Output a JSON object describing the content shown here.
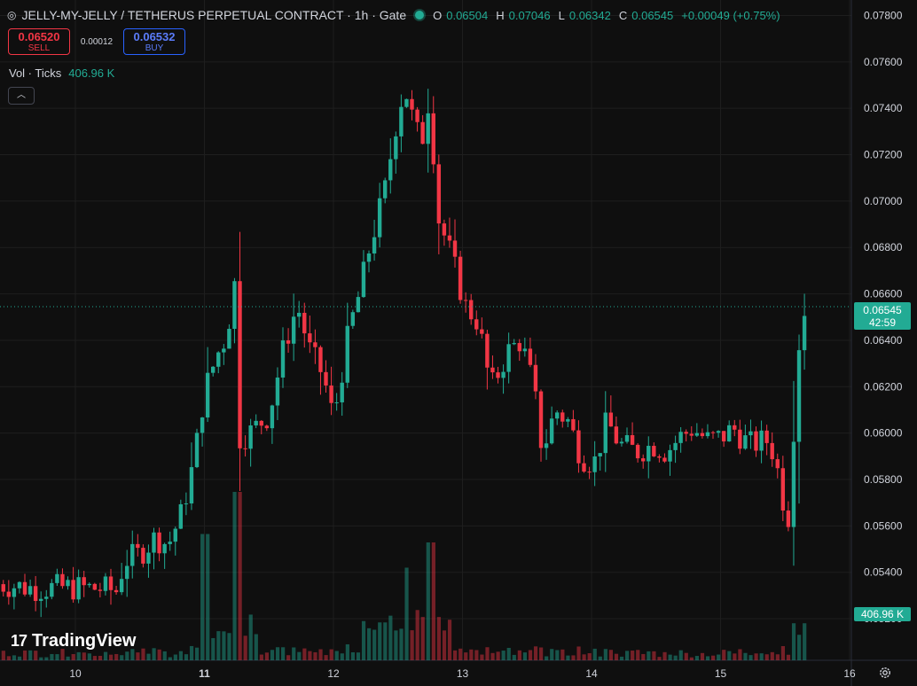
{
  "header": {
    "title": "JELLY-MY-JELLY / TETHERUS PERPETUAL CONTRACT · 1h · Gate",
    "ohlc": [
      {
        "k": "O",
        "v": "0.06504"
      },
      {
        "k": "H",
        "v": "0.07046"
      },
      {
        "k": "L",
        "v": "0.06342"
      },
      {
        "k": "C",
        "v": "0.06545"
      }
    ],
    "change": "+0.00049 (+0.75%)"
  },
  "trade": {
    "sell_price": "0.06520",
    "sell_label": "SELL",
    "spread": "0.00012",
    "buy_price": "0.06532",
    "buy_label": "BUY"
  },
  "volume_legend": {
    "label": "Vol · Ticks",
    "value": "406.96 K"
  },
  "collapse_icon": "chevron-up",
  "logo_text": "TradingView",
  "last_price": {
    "value": "0.06545",
    "countdown": "42:59"
  },
  "volume_tag": "406.96 K",
  "colors": {
    "up": "#22ab94",
    "down": "#f23645",
    "background": "#0f0f0f",
    "grid": "#1e1e1e"
  },
  "chart_data": {
    "type": "candlestick",
    "symbol": "JELLY-MY-JELLY / TETHERUS PERPETUAL CONTRACT",
    "interval": "1h",
    "exchange": "Gate",
    "price_axis": {
      "min": 0.0512,
      "max": 0.0784,
      "ticks": [
        "0.07800",
        "0.07600",
        "0.07400",
        "0.07200",
        "0.07000",
        "0.06800",
        "0.06600",
        "0.06400",
        "0.06200",
        "0.06000",
        "0.05800",
        "0.05600",
        "0.05400",
        "0.05200"
      ]
    },
    "time_axis": {
      "ticks": [
        {
          "label": "10",
          "day": 10,
          "bold": false
        },
        {
          "label": "11",
          "day": 11,
          "bold": true
        },
        {
          "label": "12",
          "day": 12,
          "bold": false
        },
        {
          "label": "13",
          "day": 13,
          "bold": false
        },
        {
          "label": "14",
          "day": 14,
          "bold": false
        },
        {
          "label": "15",
          "day": 15,
          "bold": false
        },
        {
          "label": "16",
          "day": 16,
          "bold": false
        }
      ]
    },
    "keypoints": [
      [
        9.4,
        0.0535
      ],
      [
        9.7,
        0.0533
      ],
      [
        9.9,
        0.05335
      ],
      [
        10.2,
        0.0533
      ],
      [
        10.32,
        0.0532
      ],
      [
        10.38,
        0.0545
      ],
      [
        10.5,
        0.0548
      ],
      [
        10.62,
        0.0555
      ],
      [
        10.72,
        0.0552
      ],
      [
        10.82,
        0.0565
      ],
      [
        10.92,
        0.0588
      ],
      [
        11.0,
        0.0618
      ],
      [
        11.1,
        0.0634
      ],
      [
        11.18,
        0.0643
      ],
      [
        11.23,
        0.067
      ],
      [
        11.27,
        0.0598
      ],
      [
        11.35,
        0.06
      ],
      [
        11.5,
        0.0608
      ],
      [
        11.62,
        0.0638
      ],
      [
        11.72,
        0.0655
      ],
      [
        11.82,
        0.0635
      ],
      [
        11.92,
        0.0625
      ],
      [
        12.0,
        0.0606
      ],
      [
        12.12,
        0.0644
      ],
      [
        12.2,
        0.066
      ],
      [
        12.28,
        0.068
      ],
      [
        12.4,
        0.0705
      ],
      [
        12.48,
        0.0732
      ],
      [
        12.55,
        0.075
      ],
      [
        12.6,
        0.0738
      ],
      [
        12.68,
        0.0724
      ],
      [
        12.75,
        0.0748
      ],
      [
        12.8,
        0.0695
      ],
      [
        12.92,
        0.0675
      ],
      [
        13.02,
        0.0655
      ],
      [
        13.12,
        0.0648
      ],
      [
        13.22,
        0.0619
      ],
      [
        13.35,
        0.0635
      ],
      [
        13.45,
        0.064
      ],
      [
        13.55,
        0.062
      ],
      [
        13.62,
        0.0592
      ],
      [
        13.72,
        0.061
      ],
      [
        13.82,
        0.0605
      ],
      [
        13.92,
        0.059
      ],
      [
        14.02,
        0.0587
      ],
      [
        14.12,
        0.0605
      ],
      [
        14.22,
        0.0595
      ],
      [
        14.35,
        0.0592
      ],
      [
        14.48,
        0.0595
      ],
      [
        14.58,
        0.0592
      ],
      [
        14.68,
        0.0598
      ],
      [
        14.78,
        0.0602
      ],
      [
        14.9,
        0.0597
      ],
      [
        15.0,
        0.0598
      ],
      [
        15.1,
        0.0602
      ],
      [
        15.22,
        0.0595
      ],
      [
        15.38,
        0.0597
      ],
      [
        15.45,
        0.0582
      ],
      [
        15.52,
        0.056
      ],
      [
        15.55,
        0.0563
      ],
      [
        15.58,
        0.0625
      ],
      [
        15.62,
        0.0641
      ],
      [
        15.66,
        0.06545
      ]
    ],
    "volume": {
      "last": "406.96 K",
      "spikes": [
        [
          11.0,
          0.75
        ],
        [
          11.25,
          1.0
        ],
        [
          12.55,
          0.55
        ],
        [
          12.75,
          0.7
        ],
        [
          15.58,
          0.22
        ],
        [
          15.65,
          0.22
        ]
      ]
    }
  }
}
